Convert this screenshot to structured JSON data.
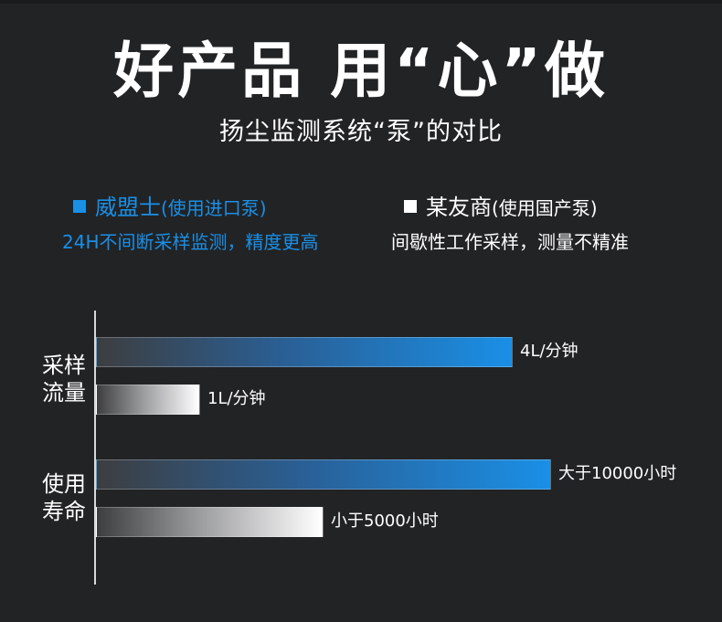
{
  "header": {
    "title": "好产品 用“心”做",
    "subtitle": "扬尘监测系统“泵”的对比"
  },
  "legend": {
    "a": {
      "name": "威盟士",
      "note": "(使用进口泵)",
      "desc": "24H不间断采样监测，精度更高",
      "color": "#1a8fe6"
    },
    "b": {
      "name": "某友商",
      "note": "(使用国产泵)",
      "desc": "间歇性工作采样，测量不精准",
      "color": "#ffffff"
    }
  },
  "chart_data": {
    "type": "bar",
    "orientation": "horizontal",
    "categories": [
      "采样\n流量",
      "使用\n寿命"
    ],
    "category_lines": [
      [
        "采样",
        "流量"
      ],
      [
        "使用",
        "寿命"
      ]
    ],
    "series": [
      {
        "name": "威盟士",
        "color": "#1a8fe6",
        "values": [
          4,
          10000
        ],
        "labels": [
          "4L/分钟",
          "大于10000小时"
        ]
      },
      {
        "name": "某友商",
        "color": "#ffffff",
        "values": [
          1,
          5000
        ],
        "labels": [
          "1L/分钟",
          "小于5000小时"
        ]
      }
    ],
    "grid": false
  }
}
